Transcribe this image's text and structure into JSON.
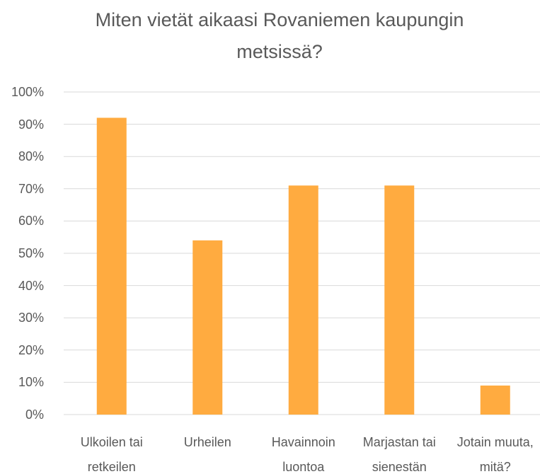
{
  "chart_data": {
    "type": "bar",
    "title": "Miten vietät aikaasi Rovaniemen kaupungin metsissä?",
    "categories": [
      "Ulkoilen tai retkeilen",
      "Urheilen",
      "Havainnoin luontoa",
      "Marjastan tai sienestän",
      "Jotain muuta, mitä?"
    ],
    "values": [
      92,
      54,
      71,
      71,
      9
    ],
    "color": "#ffab40",
    "ylim": [
      0,
      100
    ],
    "yticks": [
      {
        "value": 0,
        "label": "0%"
      },
      {
        "value": 10,
        "label": "10%"
      },
      {
        "value": 20,
        "label": "20%"
      },
      {
        "value": 30,
        "label": "30%"
      },
      {
        "value": 40,
        "label": "40%"
      },
      {
        "value": 50,
        "label": "50%"
      },
      {
        "value": 60,
        "label": "60%"
      },
      {
        "value": 70,
        "label": "70%"
      },
      {
        "value": 80,
        "label": "80%"
      },
      {
        "value": 90,
        "label": "90%"
      },
      {
        "value": 100,
        "label": "100%"
      }
    ],
    "grid": true
  }
}
